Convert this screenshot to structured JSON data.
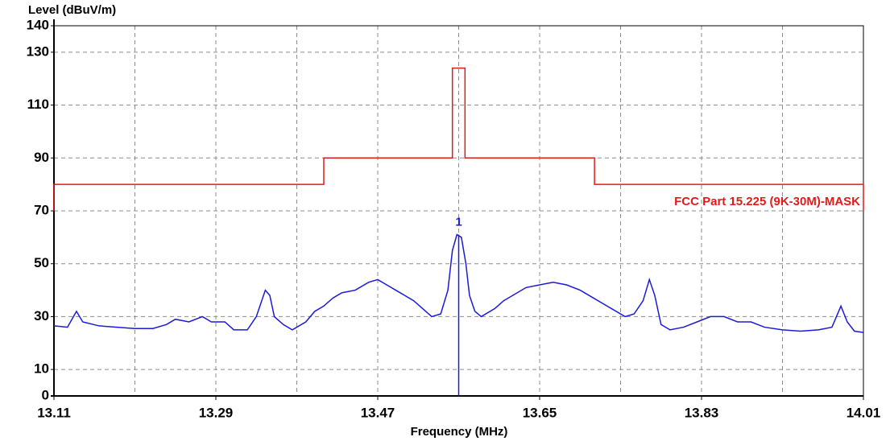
{
  "chart_data": {
    "type": "line",
    "y_label": "Level (dBuV/m)",
    "x_label": "Frequency (MHz)",
    "xlim": [
      13.11,
      14.01
    ],
    "ylim": [
      0,
      140
    ],
    "xticks": [
      13.11,
      13.29,
      13.47,
      13.65,
      13.83,
      14.01
    ],
    "xgrid": [
      13.2,
      13.38,
      13.56,
      13.74,
      13.92
    ],
    "yticks": [
      0,
      10,
      30,
      50,
      70,
      90,
      110,
      130,
      140
    ],
    "grid": true,
    "series": [
      {
        "name": "FCC Part 15.225 (9K-30M)-MASK",
        "color": "#e31a1a",
        "x": [
          13.11,
          13.11,
          13.41,
          13.41,
          13.553,
          13.553,
          13.567,
          13.567,
          13.711,
          13.711,
          14.01,
          14.01
        ],
        "values": [
          70,
          80,
          80,
          90,
          90,
          124,
          124,
          90,
          90,
          80,
          80,
          70
        ]
      },
      {
        "color": "#1a1adb",
        "x": [
          13.11,
          13.125,
          13.135,
          13.142,
          13.16,
          13.18,
          13.2,
          13.22,
          13.235,
          13.245,
          13.26,
          13.275,
          13.285,
          13.3,
          13.31,
          13.325,
          13.335,
          13.345,
          13.35,
          13.355,
          13.365,
          13.375,
          13.39,
          13.4,
          13.41,
          13.42,
          13.43,
          13.445,
          13.46,
          13.47,
          13.48,
          13.49,
          13.5,
          13.51,
          13.52,
          13.53,
          13.54,
          13.548,
          13.553,
          13.558,
          13.563,
          13.568,
          13.572,
          13.578,
          13.585,
          13.6,
          13.61,
          13.62,
          13.635,
          13.65,
          13.665,
          13.68,
          13.695,
          13.71,
          13.72,
          13.73,
          13.745,
          13.755,
          13.765,
          13.772,
          13.778,
          13.785,
          13.795,
          13.81,
          13.825,
          13.84,
          13.855,
          13.87,
          13.885,
          13.9,
          13.92,
          13.94,
          13.96,
          13.975,
          13.985,
          13.992,
          14.0,
          14.01
        ],
        "values": [
          26.5,
          26,
          32,
          28,
          26.5,
          26,
          25.5,
          25.5,
          27,
          29,
          28,
          30,
          28,
          28,
          25,
          25,
          30,
          40,
          38,
          30,
          27,
          25,
          28,
          32,
          34,
          37,
          39,
          40,
          43,
          44,
          42,
          40,
          38,
          36,
          33,
          30,
          31,
          40,
          55,
          61,
          60,
          50,
          38,
          32,
          30,
          33,
          36,
          38,
          41,
          42,
          43,
          42,
          40,
          37,
          35,
          33,
          30,
          31,
          36,
          44,
          38,
          27,
          25,
          26,
          28,
          30,
          30,
          28,
          28,
          26,
          25,
          24.5,
          25,
          26,
          34,
          28,
          24.5,
          24
        ]
      }
    ],
    "markers": [
      {
        "label": "1",
        "x": 13.56,
        "value": 61,
        "color": "#1a1adb"
      }
    ]
  }
}
